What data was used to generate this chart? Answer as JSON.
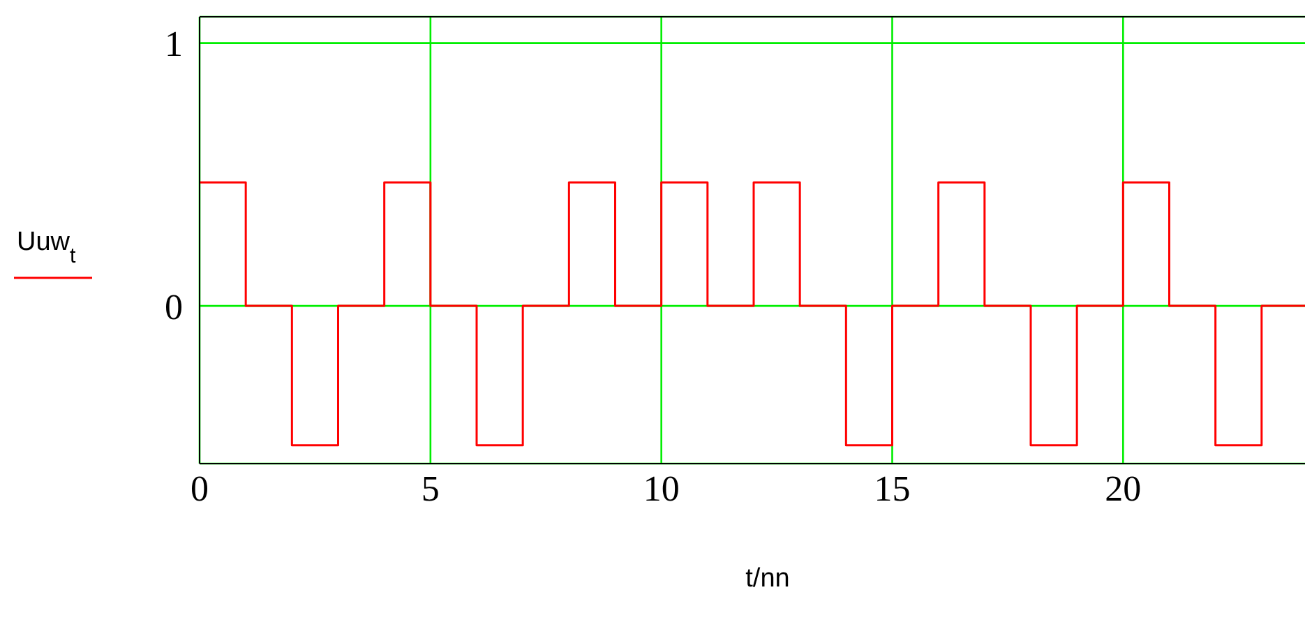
{
  "chart_data": {
    "type": "step",
    "x": [
      0,
      1,
      2,
      3,
      4,
      5,
      6,
      7,
      8,
      9,
      10,
      11,
      12,
      13,
      14,
      15,
      16,
      17,
      18,
      19,
      20,
      21,
      22,
      23,
      24
    ],
    "series": [
      {
        "name": "Uuw$_{t}$",
        "color": "#ff0000",
        "values": [
          0.47,
          0,
          -0.53,
          0,
          0.47,
          0,
          -0.53,
          0,
          0.47,
          0,
          0.47,
          0,
          0.47,
          0,
          -0.53,
          0,
          0.47,
          0,
          -0.53,
          0,
          0.47,
          0,
          -0.53,
          0,
          0
        ]
      }
    ],
    "xlabel": "t/nn",
    "xlim": [
      0,
      24
    ],
    "xticks": [
      0,
      5,
      10,
      15,
      20
    ],
    "ylim": [
      -0.6,
      1.1
    ],
    "yticks": [
      0,
      1
    ],
    "grid": true,
    "legend": "left",
    "marker": "none",
    "line_style": "solid"
  }
}
